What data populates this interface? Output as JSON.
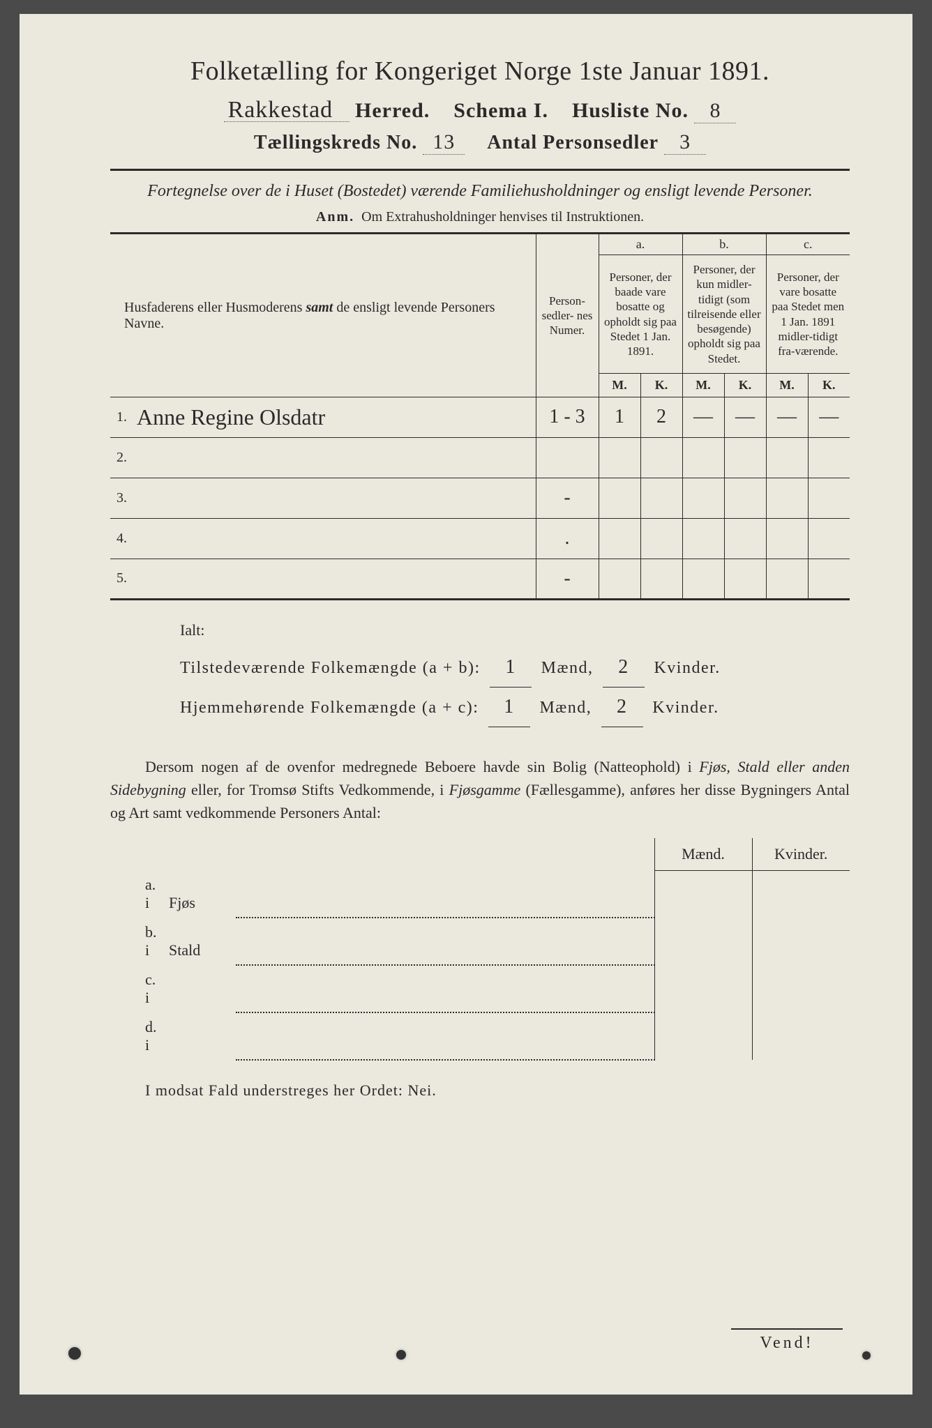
{
  "title": "Folketælling for Kongeriget Norge 1ste Januar 1891.",
  "header": {
    "herred_value": "Rakkestad",
    "herred_label": "Herred.",
    "schema_label": "Schema I.",
    "husliste_label": "Husliste No.",
    "husliste_value": "8",
    "kreds_label": "Tællingskreds No.",
    "kreds_value": "13",
    "antal_label": "Antal Personsedler",
    "antal_value": "3"
  },
  "subtitle": "Fortegnelse over de i Huset (Bostedet) værende Familiehusholdninger og ensligt levende Personer.",
  "anm_label": "Anm.",
  "anm_text": "Om Extrahusholdninger henvises til Instruktionen.",
  "table": {
    "col_names": "Husfaderens eller Husmoderens samt de ensligt levende Personers Navne.",
    "col_num": "Person-\nsedler-\nnes\nNumer.",
    "col_a_top": "a.",
    "col_a": "Personer, der baade vare bosatte og opholdt sig paa Stedet 1 Jan. 1891.",
    "col_b_top": "b.",
    "col_b": "Personer, der kun midler-tidigt (som tilreisende eller besøgende) opholdt sig paa Stedet.",
    "col_c_top": "c.",
    "col_c": "Personer, der vare bosatte paa Stedet men 1 Jan. 1891 midler-tidigt fra-værende.",
    "m": "M.",
    "k": "K.",
    "rows": [
      {
        "n": "1.",
        "name": "Anne Regine Olsdatr",
        "num": "1 - 3",
        "am": "1",
        "ak": "2",
        "bm": "—",
        "bk": "—",
        "cm": "—",
        "ck": "—"
      },
      {
        "n": "2.",
        "name": "",
        "num": "",
        "am": "",
        "ak": "",
        "bm": "",
        "bk": "",
        "cm": "",
        "ck": ""
      },
      {
        "n": "3.",
        "name": "",
        "num": "-",
        "am": "",
        "ak": "",
        "bm": "",
        "bk": "",
        "cm": "",
        "ck": ""
      },
      {
        "n": "4.",
        "name": "",
        "num": ".",
        "am": "",
        "ak": "",
        "bm": "",
        "bk": "",
        "cm": "",
        "ck": ""
      },
      {
        "n": "5.",
        "name": "",
        "num": "-",
        "am": "",
        "ak": "",
        "bm": "",
        "bk": "",
        "cm": "",
        "ck": ""
      }
    ]
  },
  "ialt": {
    "label": "Ialt:",
    "line1_a": "Tilstedeværende Folkemængde (a + b):",
    "line2_a": "Hjemmehørende Folkemængde (a + c):",
    "maend": "Mænd,",
    "kvinder": "Kvinder.",
    "v1m": "1",
    "v1k": "2",
    "v2m": "1",
    "v2k": "2"
  },
  "para": "Dersom nogen af de ovenfor medregnede Beboere havde sin Bolig (Natteophold) i Fjøs, Stald eller anden Sidebygning eller, for Tromsø Stifts Vedkommende, i Fjøsgamme (Fællesgamme), anføres her disse Bygningers Antal og Art samt vedkommende Personers Antal:",
  "lower": {
    "maend": "Mænd.",
    "kvinder": "Kvinder.",
    "rows": [
      {
        "l": "a. i",
        "t": "Fjøs"
      },
      {
        "l": "b. i",
        "t": "Stald"
      },
      {
        "l": "c. i",
        "t": ""
      },
      {
        "l": "d. i",
        "t": ""
      }
    ]
  },
  "nei": "I modsat Fald understreges her Ordet: Nei.",
  "vend": "Vend!",
  "colors": {
    "paper": "#ebe8de",
    "ink": "#2a2a2a",
    "bg": "#4a4a4a"
  }
}
